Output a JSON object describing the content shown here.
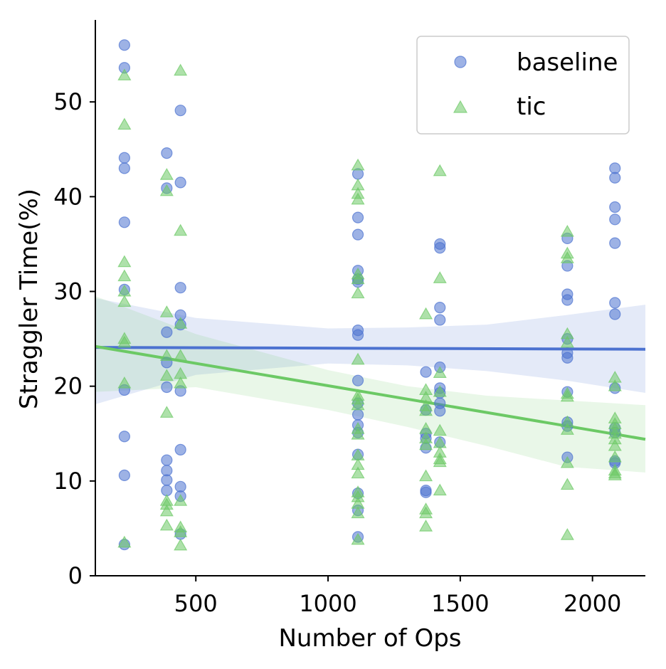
{
  "chart_data": {
    "type": "scatter",
    "title": "",
    "xlabel": "Number of Ops",
    "ylabel": "Straggler Time(%)",
    "xlim": [
      120,
      2200
    ],
    "ylim": [
      0,
      58.5
    ],
    "xticks": [
      500,
      1000,
      1500,
      2000
    ],
    "xtick_labels": [
      "500",
      "1000",
      "1500",
      "2000"
    ],
    "yticks": [
      0,
      10,
      20,
      30,
      40,
      50
    ],
    "ytick_labels": [
      "0",
      "10",
      "20",
      "30",
      "40",
      "50"
    ],
    "grid": false,
    "legend_position": "top-right",
    "series": [
      {
        "name": "baseline",
        "marker": "circle",
        "color": "#4c72d0",
        "points": [
          [
            230,
            56
          ],
          [
            230,
            53.6
          ],
          [
            230,
            44.1
          ],
          [
            230,
            43
          ],
          [
            230,
            37.3
          ],
          [
            230,
            30.2
          ],
          [
            230,
            19.6
          ],
          [
            230,
            14.7
          ],
          [
            230,
            10.6
          ],
          [
            230,
            3.3
          ],
          [
            390,
            44.6
          ],
          [
            390,
            40.9
          ],
          [
            390,
            25.7
          ],
          [
            390,
            22.5
          ],
          [
            390,
            19.9
          ],
          [
            390,
            12.2
          ],
          [
            390,
            11.1
          ],
          [
            390,
            10.1
          ],
          [
            390,
            9
          ],
          [
            442,
            49.1
          ],
          [
            442,
            41.5
          ],
          [
            442,
            30.4
          ],
          [
            442,
            27.5
          ],
          [
            442,
            26.5
          ],
          [
            442,
            19.5
          ],
          [
            442,
            13.3
          ],
          [
            442,
            9.4
          ],
          [
            442,
            8.4
          ],
          [
            442,
            4.4
          ],
          [
            1113,
            42.4
          ],
          [
            1113,
            37.8
          ],
          [
            1113,
            36
          ],
          [
            1113,
            32.2
          ],
          [
            1113,
            31.3
          ],
          [
            1113,
            31
          ],
          [
            1113,
            25.9
          ],
          [
            1113,
            25.4
          ],
          [
            1113,
            20.6
          ],
          [
            1113,
            18.2
          ],
          [
            1113,
            17
          ],
          [
            1113,
            15.9
          ],
          [
            1113,
            15.1
          ],
          [
            1113,
            12.8
          ],
          [
            1113,
            8.7
          ],
          [
            1113,
            6.9
          ],
          [
            1113,
            4.1
          ],
          [
            1370,
            21.5
          ],
          [
            1370,
            17.5
          ],
          [
            1370,
            15
          ],
          [
            1370,
            14.5
          ],
          [
            1370,
            13.5
          ],
          [
            1370,
            9
          ],
          [
            1370,
            8.8
          ],
          [
            1423,
            35
          ],
          [
            1423,
            34.6
          ],
          [
            1423,
            28.3
          ],
          [
            1423,
            27
          ],
          [
            1423,
            22
          ],
          [
            1423,
            19.8
          ],
          [
            1423,
            19.3
          ],
          [
            1423,
            18.2
          ],
          [
            1423,
            17.4
          ],
          [
            1423,
            14.1
          ],
          [
            1905,
            35.6
          ],
          [
            1905,
            32.7
          ],
          [
            1905,
            29.7
          ],
          [
            1905,
            29.1
          ],
          [
            1905,
            25
          ],
          [
            1905,
            23.5
          ],
          [
            1905,
            23
          ],
          [
            1905,
            19.4
          ],
          [
            1905,
            16.2
          ],
          [
            1905,
            15.8
          ],
          [
            1905,
            12.5
          ],
          [
            2085,
            43
          ],
          [
            2085,
            42
          ],
          [
            2085,
            38.9
          ],
          [
            2085,
            37.6
          ],
          [
            2085,
            35.1
          ],
          [
            2085,
            28.8
          ],
          [
            2085,
            27.6
          ],
          [
            2085,
            19.8
          ],
          [
            2085,
            15.6
          ],
          [
            2085,
            15.1
          ],
          [
            2085,
            12.1
          ],
          [
            2085,
            11.9
          ]
        ]
      },
      {
        "name": "tic",
        "marker": "triangle",
        "color": "#6cc965",
        "points": [
          [
            230,
            52.8
          ],
          [
            230,
            47.6
          ],
          [
            230,
            33.1
          ],
          [
            230,
            31.6
          ],
          [
            230,
            30
          ],
          [
            230,
            28.9
          ],
          [
            230,
            25
          ],
          [
            230,
            24.6
          ],
          [
            230,
            20.3
          ],
          [
            230,
            3.5
          ],
          [
            390,
            42.3
          ],
          [
            390,
            40.6
          ],
          [
            390,
            27.8
          ],
          [
            390,
            23.2
          ],
          [
            390,
            21.1
          ],
          [
            390,
            17.2
          ],
          [
            390,
            7.9
          ],
          [
            390,
            7.5
          ],
          [
            390,
            6.8
          ],
          [
            390,
            5.3
          ],
          [
            442,
            53.3
          ],
          [
            442,
            36.4
          ],
          [
            442,
            26.6
          ],
          [
            442,
            23.2
          ],
          [
            442,
            21.3
          ],
          [
            442,
            20.3
          ],
          [
            442,
            7.9
          ],
          [
            442,
            5.1
          ],
          [
            442,
            4.6
          ],
          [
            442,
            3.2
          ],
          [
            1113,
            43.3
          ],
          [
            1113,
            41.2
          ],
          [
            1113,
            40.3
          ],
          [
            1113,
            39.7
          ],
          [
            1113,
            31.8
          ],
          [
            1113,
            31.3
          ],
          [
            1113,
            29.8
          ],
          [
            1113,
            22.8
          ],
          [
            1113,
            19
          ],
          [
            1113,
            18.6
          ],
          [
            1113,
            18
          ],
          [
            1113,
            15.5
          ],
          [
            1113,
            14.9
          ],
          [
            1113,
            12.7
          ],
          [
            1113,
            11.7
          ],
          [
            1113,
            10.8
          ],
          [
            1113,
            8.8
          ],
          [
            1113,
            8.3
          ],
          [
            1113,
            7.6
          ],
          [
            1113,
            6.6
          ],
          [
            1113,
            3.8
          ],
          [
            1370,
            27.6
          ],
          [
            1370,
            19.6
          ],
          [
            1370,
            18.8
          ],
          [
            1370,
            17.9
          ],
          [
            1370,
            17.4
          ],
          [
            1370,
            15.5
          ],
          [
            1370,
            14.5
          ],
          [
            1370,
            13.8
          ],
          [
            1370,
            10.5
          ],
          [
            1370,
            7
          ],
          [
            1370,
            6.6
          ],
          [
            1370,
            5.2
          ],
          [
            1423,
            42.7
          ],
          [
            1423,
            31.4
          ],
          [
            1423,
            21.4
          ],
          [
            1423,
            19.4
          ],
          [
            1423,
            15.3
          ],
          [
            1423,
            14
          ],
          [
            1423,
            13
          ],
          [
            1423,
            12.3
          ],
          [
            1423,
            12
          ],
          [
            1423,
            9
          ],
          [
            1905,
            36.3
          ],
          [
            1905,
            34
          ],
          [
            1905,
            33.5
          ],
          [
            1905,
            25.5
          ],
          [
            1905,
            24.6
          ],
          [
            1905,
            19.2
          ],
          [
            1905,
            18.9
          ],
          [
            1905,
            16.2
          ],
          [
            1905,
            15.4
          ],
          [
            1905,
            11.9
          ],
          [
            1905,
            9.6
          ],
          [
            1905,
            4.3
          ],
          [
            2085,
            20.9
          ],
          [
            2085,
            20
          ],
          [
            2085,
            16.6
          ],
          [
            2085,
            16
          ],
          [
            2085,
            15.5
          ],
          [
            2085,
            15
          ],
          [
            2085,
            14.4
          ],
          [
            2085,
            13.7
          ],
          [
            2085,
            12.5
          ],
          [
            2085,
            11.1
          ],
          [
            2085,
            10.8
          ],
          [
            2085,
            10.6
          ]
        ]
      }
    ],
    "regression": [
      {
        "series": "baseline",
        "color": "#4c72d0",
        "line": [
          [
            120,
            24.1
          ],
          [
            2200,
            23.9
          ]
        ],
        "ci_upper": [
          [
            120,
            29.3
          ],
          [
            500,
            27.2
          ],
          [
            1000,
            26.1
          ],
          [
            1300,
            26.2
          ],
          [
            1600,
            26.5
          ],
          [
            1900,
            27.5
          ],
          [
            2200,
            28.6
          ]
        ],
        "ci_lower": [
          [
            120,
            18.1
          ],
          [
            500,
            21.2
          ],
          [
            1000,
            22.4
          ],
          [
            1300,
            22.2
          ],
          [
            1600,
            21.6
          ],
          [
            1900,
            20.6
          ],
          [
            2200,
            19.3
          ]
        ]
      },
      {
        "series": "tic",
        "color": "#6cc965",
        "line": [
          [
            120,
            24.2
          ],
          [
            2200,
            14.4
          ]
        ],
        "ci_upper": [
          [
            120,
            29.5
          ],
          [
            500,
            25.5
          ],
          [
            1000,
            21.7
          ],
          [
            1300,
            20
          ],
          [
            1600,
            19
          ],
          [
            1900,
            18.5
          ],
          [
            2200,
            18
          ]
        ],
        "ci_lower": [
          [
            120,
            19.4
          ],
          [
            500,
            19.9
          ],
          [
            1000,
            17.5
          ],
          [
            1300,
            15.7
          ],
          [
            1600,
            13.7
          ],
          [
            1900,
            11.5
          ],
          [
            2200,
            10.9
          ]
        ]
      }
    ]
  }
}
